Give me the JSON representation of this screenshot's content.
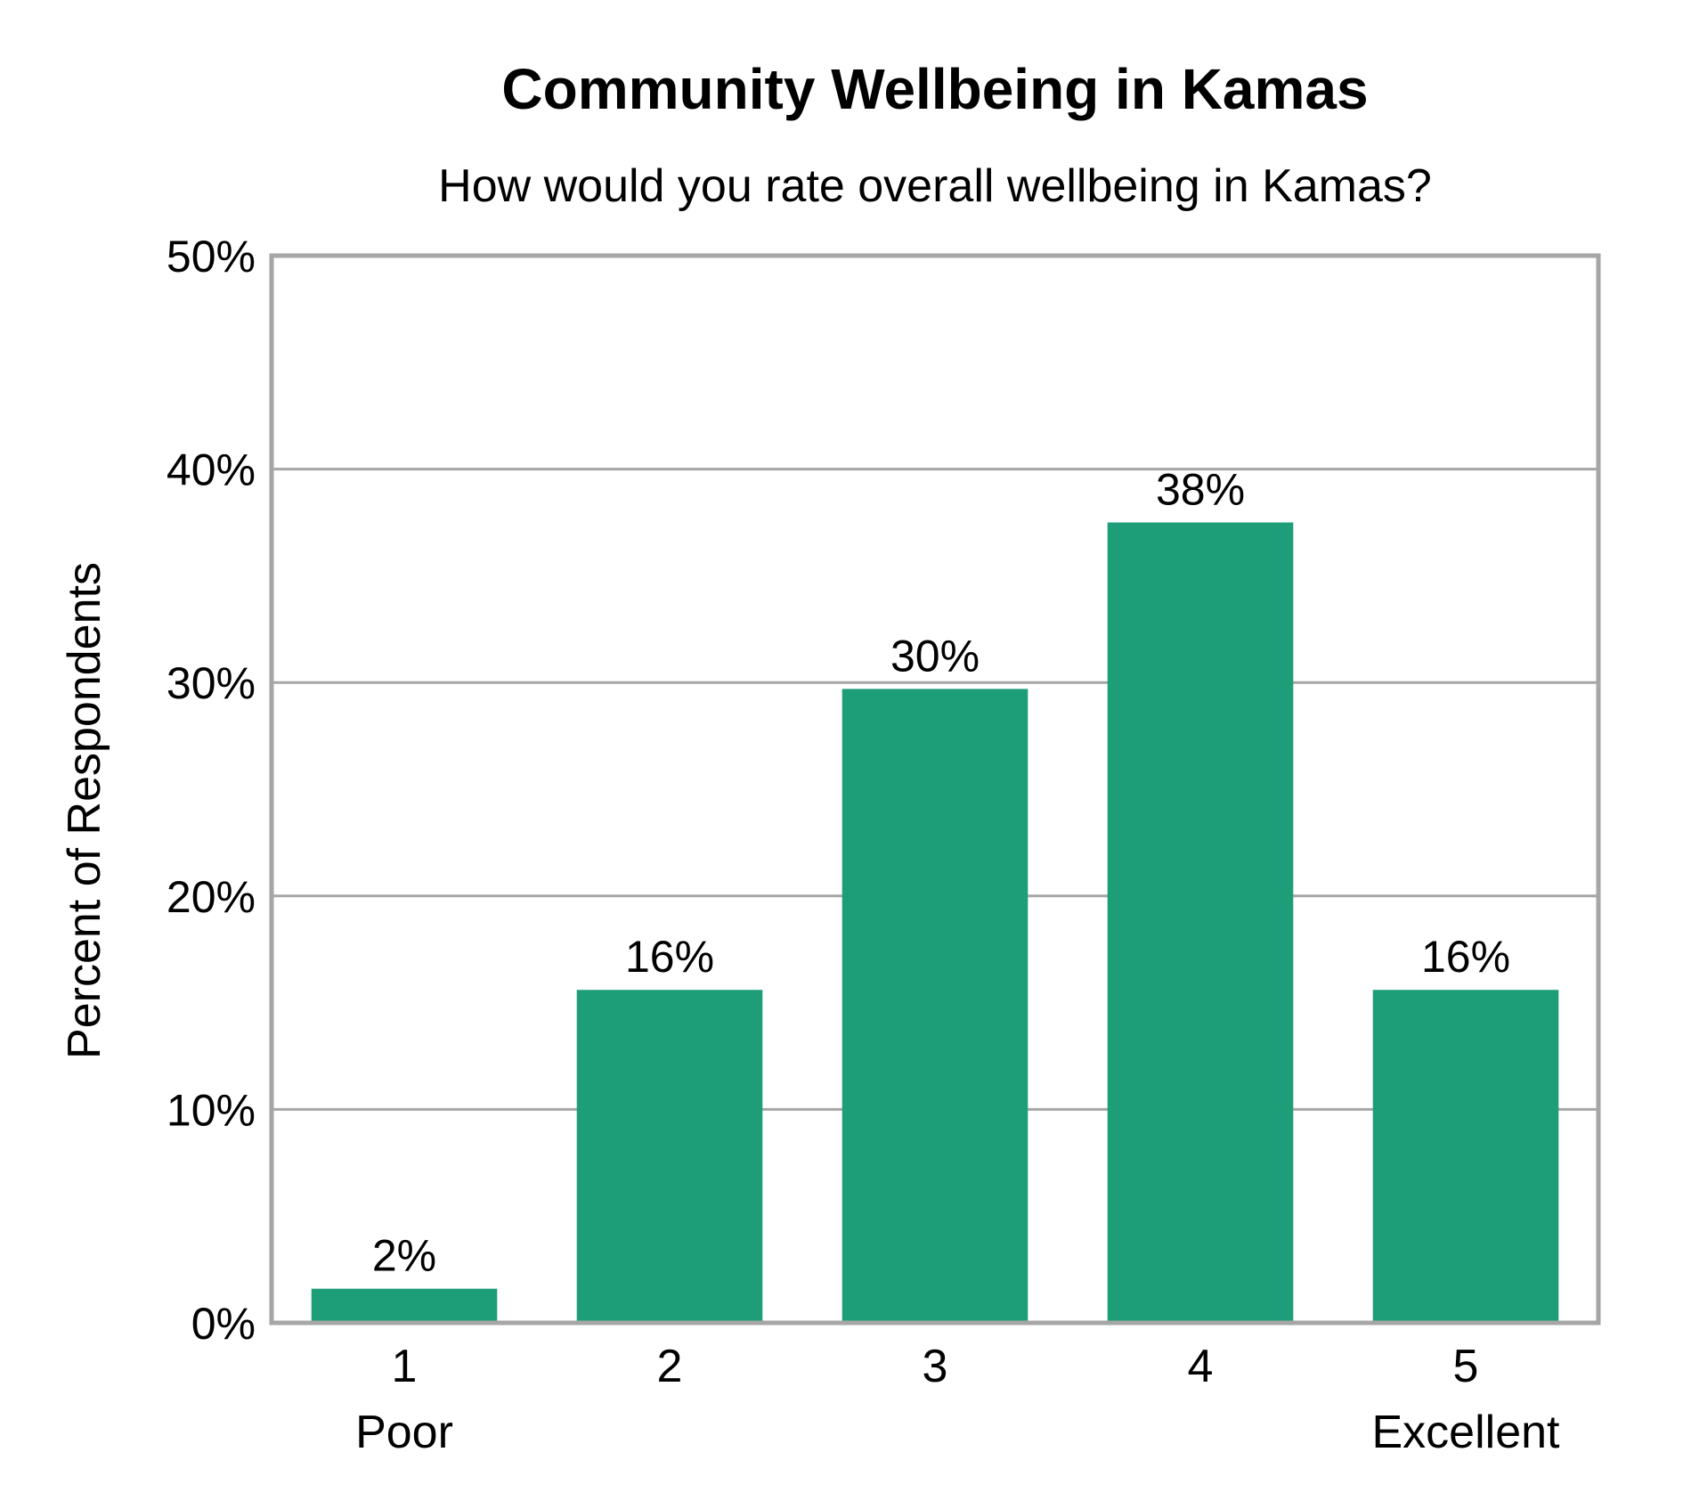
{
  "chart_data": {
    "type": "bar",
    "title": "Community Wellbeing in Kamas",
    "subtitle": "How would you rate overall wellbeing in Kamas?",
    "ylabel": "Percent of Respondents",
    "xlabel": "",
    "categories": [
      "1",
      "2",
      "3",
      "4",
      "5"
    ],
    "category_sublabels": [
      "Poor",
      "",
      "",
      "",
      "Excellent"
    ],
    "values": [
      1.6,
      15.6,
      29.7,
      37.5,
      15.6
    ],
    "data_labels": [
      "2%",
      "16%",
      "30%",
      "38%",
      "16%"
    ],
    "ylim": [
      0,
      50
    ],
    "yticks": [
      0,
      10,
      20,
      30,
      40,
      50
    ],
    "ytick_labels": [
      "0%",
      "10%",
      "20%",
      "30%",
      "40%",
      "50%"
    ],
    "grid": true,
    "colors": {
      "bar": "#1e9e78",
      "frame": "#a6a6a6",
      "grid": "#a6a6a6"
    }
  }
}
